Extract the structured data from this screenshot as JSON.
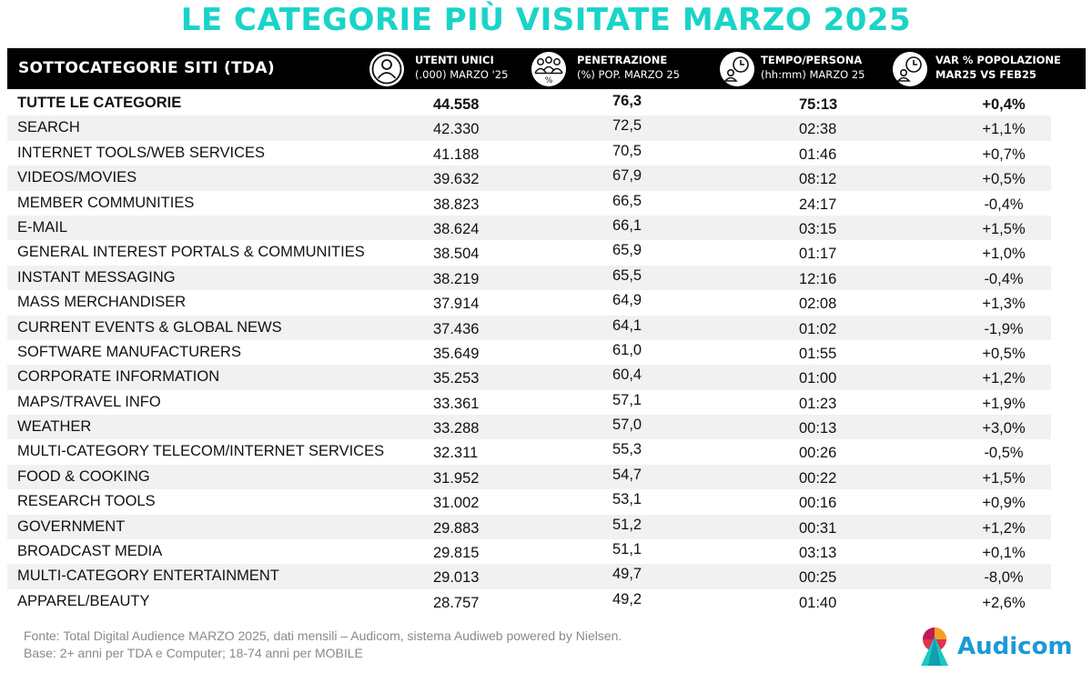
{
  "title": "LE CATEGORIE PIÙ VISITATE MARZO 2025",
  "header": {
    "first": "SOTTOCATEGORIE SITI  (TDA)",
    "col_users": [
      "UTENTI UNICI",
      "(.000) MARZO '25"
    ],
    "col_pen": [
      "PENETRAZIONE",
      "(%) POP. MARZO 25"
    ],
    "col_time": [
      "TEMPO/PERSONA",
      "(hh:mm) MARZO 25"
    ],
    "col_var": [
      "VAR % POPOLAZIONE",
      "MAR25 VS FEB25"
    ],
    "icons": [
      "user-icon",
      "group-percent-icon",
      "clock-user-icon",
      "clock-user-icon"
    ]
  },
  "rows": [
    {
      "name": "TUTTE LE CATEGORIE",
      "users": "44.558",
      "pen": "76,3",
      "time": "75:13",
      "var": "+0,4%"
    },
    {
      "name": "SEARCH",
      "users": "42.330",
      "pen": "72,5",
      "time": "02:38",
      "var": "+1,1%"
    },
    {
      "name": "INTERNET TOOLS/WEB SERVICES",
      "users": "41.188",
      "pen": "70,5",
      "time": "01:46",
      "var": "+0,7%"
    },
    {
      "name": "VIDEOS/MOVIES",
      "users": "39.632",
      "pen": "67,9",
      "time": "08:12",
      "var": "+0,5%"
    },
    {
      "name": "MEMBER COMMUNITIES",
      "users": "38.823",
      "pen": "66,5",
      "time": "24:17",
      "var": "-0,4%"
    },
    {
      "name": "E-MAIL",
      "users": "38.624",
      "pen": "66,1",
      "time": "03:15",
      "var": "+1,5%"
    },
    {
      "name": "GENERAL INTEREST PORTALS & COMMUNITIES",
      "users": "38.504",
      "pen": "65,9",
      "time": "01:17",
      "var": "+1,0%"
    },
    {
      "name": "INSTANT MESSAGING",
      "users": "38.219",
      "pen": "65,5",
      "time": "12:16",
      "var": "-0,4%"
    },
    {
      "name": "MASS MERCHANDISER",
      "users": "37.914",
      "pen": "64,9",
      "time": "02:08",
      "var": "+1,3%"
    },
    {
      "name": "CURRENT EVENTS & GLOBAL NEWS",
      "users": "37.436",
      "pen": "64,1",
      "time": "01:02",
      "var": "-1,9%"
    },
    {
      "name": "SOFTWARE MANUFACTURERS",
      "users": "35.649",
      "pen": "61,0",
      "time": "01:55",
      "var": "+0,5%"
    },
    {
      "name": "CORPORATE INFORMATION",
      "users": "35.253",
      "pen": "60,4",
      "time": "01:00",
      "var": "+1,2%"
    },
    {
      "name": "MAPS/TRAVEL INFO",
      "users": "33.361",
      "pen": "57,1",
      "time": "01:23",
      "var": "+1,9%"
    },
    {
      "name": "WEATHER",
      "users": "33.288",
      "pen": "57,0",
      "time": "00:13",
      "var": "+3,0%"
    },
    {
      "name": "MULTI-CATEGORY TELECOM/INTERNET SERVICES",
      "users": "32.311",
      "pen": "55,3",
      "time": "00:26",
      "var": "-0,5%"
    },
    {
      "name": "FOOD & COOKING",
      "users": "31.952",
      "pen": "54,7",
      "time": "00:22",
      "var": "+1,5%"
    },
    {
      "name": "RESEARCH TOOLS",
      "users": "31.002",
      "pen": "53,1",
      "time": "00:16",
      "var": "+0,9%"
    },
    {
      "name": "GOVERNMENT",
      "users": "29.883",
      "pen": "51,2",
      "time": "00:31",
      "var": "+1,2%"
    },
    {
      "name": "BROADCAST MEDIA",
      "users": "29.815",
      "pen": "51,1",
      "time": "03:13",
      "var": "+0,1%"
    },
    {
      "name": "MULTI-CATEGORY ENTERTAINMENT",
      "users": "29.013",
      "pen": "49,7",
      "time": "00:25",
      "var": "-8,0%"
    },
    {
      "name": "APPAREL/BEAUTY",
      "users": "28.757",
      "pen": "49,2",
      "time": "01:40",
      "var": "+2,6%"
    }
  ],
  "footer": {
    "line1": "Fonte: Total Digital Audience MARZO 2025, dati mensili – Audicom, sistema Audiweb powered by Nielsen.",
    "line2": "Base: 2+ anni per TDA e Computer; 18-74 anni per MOBILE"
  },
  "logo": {
    "text": "Audicom",
    "icon": "audicom-logo-icon"
  },
  "colors": {
    "title": "#19d4c8",
    "header_bg": "#000000",
    "row_alt": "#f1f1f1",
    "logo_text": "#1a9ad6"
  }
}
